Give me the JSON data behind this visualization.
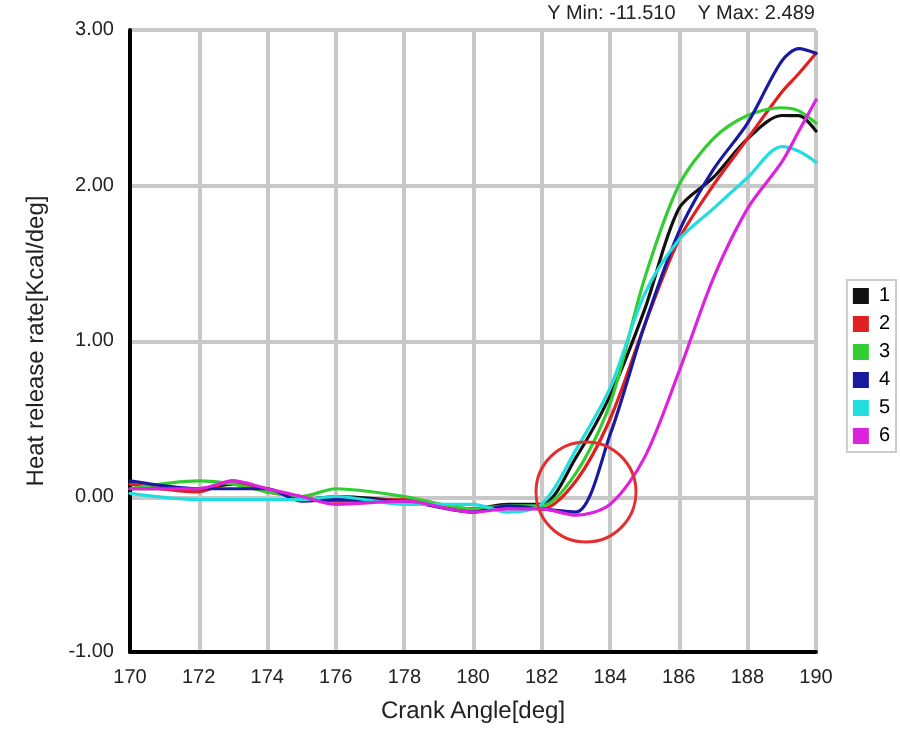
{
  "chart_data": {
    "type": "line",
    "xlabel": "Crank Angle[deg]",
    "ylabel": "Heat release rate[Kcal/deg]",
    "annotations": [
      "Y Min: -11.510    Y Max: 2.489"
    ],
    "x": [
      170,
      172,
      173,
      174,
      175,
      176,
      178,
      180,
      181,
      182,
      183,
      184,
      185,
      186,
      187,
      188,
      189,
      189.5,
      190
    ],
    "series": [
      {
        "name": "1",
        "color": "#111111",
        "values": [
          0.05,
          0.05,
          0.08,
          0.05,
          -0.02,
          0,
          -0.03,
          -0.08,
          -0.05,
          -0.05,
          0.25,
          0.65,
          1.2,
          1.85,
          2.05,
          2.3,
          2.45,
          2.45,
          2.35
        ]
      },
      {
        "name": "2",
        "color": "#e02020",
        "values": [
          0.08,
          0.03,
          0.1,
          0.03,
          0,
          -0.03,
          -0.02,
          -0.1,
          -0.06,
          -0.08,
          0.1,
          0.5,
          1.1,
          1.65,
          2.0,
          2.3,
          2.6,
          2.72,
          2.85
        ]
      },
      {
        "name": "3",
        "color": "#33cc33",
        "values": [
          0.05,
          0.1,
          0.08,
          0.03,
          0,
          0.05,
          0,
          -0.08,
          -0.06,
          -0.06,
          0.15,
          0.6,
          1.4,
          2.0,
          2.3,
          2.45,
          2.5,
          2.48,
          2.4
        ]
      },
      {
        "name": "4",
        "color": "#1a1aa0",
        "values": [
          0.1,
          0.05,
          0.05,
          0.05,
          -0.03,
          -0.02,
          -0.03,
          -0.1,
          -0.06,
          -0.08,
          -0.1,
          0.4,
          1.1,
          1.7,
          2.1,
          2.4,
          2.8,
          2.88,
          2.85
        ]
      },
      {
        "name": "5",
        "color": "#22dddd",
        "values": [
          0.02,
          -0.02,
          -0.02,
          -0.02,
          -0.02,
          0,
          -0.05,
          -0.05,
          -0.1,
          -0.05,
          0.3,
          0.7,
          1.3,
          1.65,
          1.85,
          2.05,
          2.25,
          2.22,
          2.15
        ]
      },
      {
        "name": "6",
        "color": "#dd22dd",
        "values": [
          0.05,
          0.05,
          0.1,
          0.05,
          0,
          -0.05,
          -0.03,
          -0.1,
          -0.08,
          -0.08,
          -0.12,
          -0.05,
          0.25,
          0.8,
          1.4,
          1.85,
          2.15,
          2.35,
          2.55
        ]
      }
    ],
    "xlim": [
      170,
      190
    ],
    "xticks": [
      170,
      172,
      174,
      176,
      178,
      180,
      182,
      184,
      186,
      188,
      190
    ],
    "ylim": [
      -1,
      3
    ],
    "yticks": [
      {
        "value": -1,
        "label": "-1.00"
      },
      {
        "value": 0,
        "label": "0.00"
      },
      {
        "value": 1,
        "label": "1.00"
      },
      {
        "value": 2,
        "label": "2.00"
      },
      {
        "value": 3,
        "label": "3.00"
      }
    ],
    "grid": true,
    "legend": "right",
    "line_style": "solid"
  }
}
